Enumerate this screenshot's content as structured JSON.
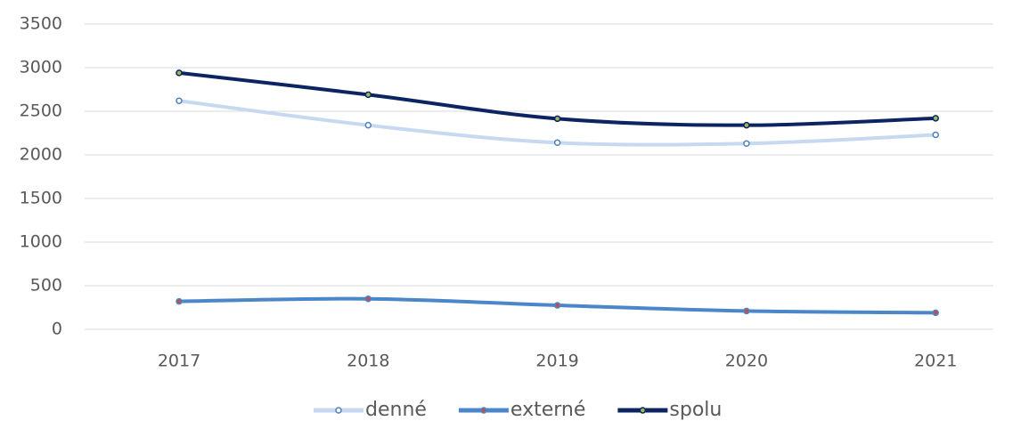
{
  "chart_data": {
    "type": "line",
    "categories": [
      "2017",
      "2018",
      "2019",
      "2020",
      "2021"
    ],
    "series": [
      {
        "name": "denné",
        "color": "#c6d9f1",
        "marker_color": "#4f81bd",
        "values": [
          2620,
          2340,
          2140,
          2130,
          2230
        ]
      },
      {
        "name": "externé",
        "color": "#4a86c8",
        "marker_color": "#c0504d",
        "values": [
          320,
          350,
          275,
          210,
          190
        ]
      },
      {
        "name": "spolu",
        "color": "#0c2461",
        "marker_color": "#9bbb59",
        "values": [
          2940,
          2690,
          2415,
          2340,
          2420
        ]
      }
    ],
    "ylim": [
      0,
      3500
    ],
    "yticks": [
      0,
      500,
      1000,
      1500,
      2000,
      2500,
      3000,
      3500
    ],
    "grid": true,
    "legend": "bottom"
  }
}
